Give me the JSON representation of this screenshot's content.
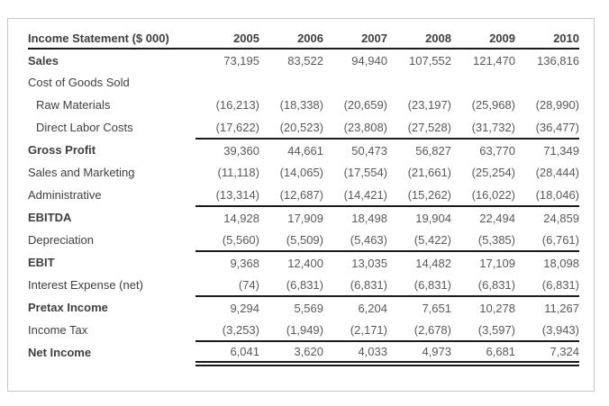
{
  "table": {
    "header": {
      "title": "Income Statement ($ 000)",
      "years": [
        "2005",
        "2006",
        "2007",
        "2008",
        "2009",
        "2010"
      ]
    },
    "rows": [
      {
        "label": "Sales",
        "bold": true,
        "values": [
          "73,195",
          "83,522",
          "94,940",
          "107,552",
          "121,470",
          "136,816"
        ]
      },
      {
        "label": "Cost of Goods Sold",
        "values": [
          "",
          "",
          "",
          "",
          "",
          ""
        ]
      },
      {
        "label": "Raw Materials",
        "indent": true,
        "values": [
          "(16,213)",
          "(18,338)",
          "(20,659)",
          "(23,197)",
          "(25,968)",
          "(28,990)"
        ]
      },
      {
        "label": "Direct Labor Costs",
        "indent": true,
        "rule_below": true,
        "values": [
          "(17,622)",
          "(20,523)",
          "(23,808)",
          "(27,528)",
          "(31,732)",
          "(36,477)"
        ]
      },
      {
        "label": "Gross Profit",
        "bold": true,
        "values": [
          "39,360",
          "44,661",
          "50,473",
          "56,827",
          "63,770",
          "71,349"
        ]
      },
      {
        "label": "Sales and Marketing",
        "values": [
          "(11,118)",
          "(14,065)",
          "(17,554)",
          "(21,661)",
          "(25,254)",
          "(28,444)"
        ]
      },
      {
        "label": "Administrative",
        "rule_below": true,
        "values": [
          "(13,314)",
          "(12,687)",
          "(14,421)",
          "(15,262)",
          "(16,022)",
          "(18,046)"
        ]
      },
      {
        "label": "EBITDA",
        "bold": true,
        "values": [
          "14,928",
          "17,909",
          "18,498",
          "19,904",
          "22,494",
          "24,859"
        ]
      },
      {
        "label": "Depreciation",
        "rule_below": true,
        "values": [
          "(5,560)",
          "(5,509)",
          "(5,463)",
          "(5,422)",
          "(5,385)",
          "(6,761)"
        ]
      },
      {
        "label": "EBIT",
        "bold": true,
        "values": [
          "9,368",
          "12,400",
          "13,035",
          "14,482",
          "17,109",
          "18,098"
        ]
      },
      {
        "label": "Interest Expense (net)",
        "rule_below": true,
        "values": [
          "(74)",
          "(6,831)",
          "(6,831)",
          "(6,831)",
          "(6,831)",
          "(6,831)"
        ]
      },
      {
        "label": "Pretax Income",
        "bold": true,
        "values": [
          "9,294",
          "5,569",
          "6,204",
          "7,651",
          "10,278",
          "11,267"
        ]
      },
      {
        "label": "Income Tax",
        "rule_below": true,
        "values": [
          "(3,253)",
          "(1,949)",
          "(2,171)",
          "(2,678)",
          "(3,597)",
          "(3,943)"
        ]
      },
      {
        "label": "Net Income",
        "bold": true,
        "total": true,
        "values": [
          "6,041",
          "3,620",
          "4,033",
          "4,973",
          "6,681",
          "7,324"
        ]
      }
    ]
  },
  "colors": {
    "rule": "#1a1a1a",
    "label_text": "#3f3f3f",
    "number_text": "#595959",
    "panel_border": "#c6c6c6",
    "bg": "#ffffff"
  }
}
